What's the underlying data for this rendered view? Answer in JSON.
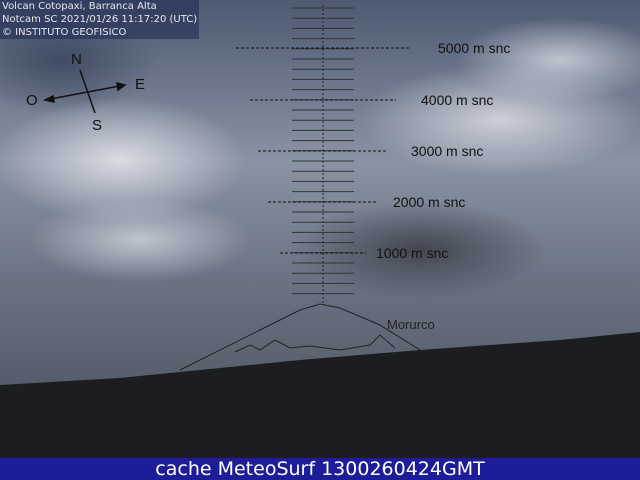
{
  "overlay": {
    "line1": "Volcan Cotopaxi, Barranca Alta",
    "line2": "Notcam SC 2021/01/26 11:17:20 (UTC)",
    "line3": "© INSTITUTO GEOFISICO"
  },
  "compass": {
    "north": "N",
    "south": "S",
    "east": "E",
    "west": "O"
  },
  "altitude_labels": [
    "5000 m snc",
    "4000 m snc",
    "3000 m snc",
    "2000 m snc",
    "1000 m snc"
  ],
  "peak_label": "Morurco",
  "footer": {
    "text": "cache MeteoSurf 1300260424GMT",
    "background": "#1d1d9a"
  }
}
